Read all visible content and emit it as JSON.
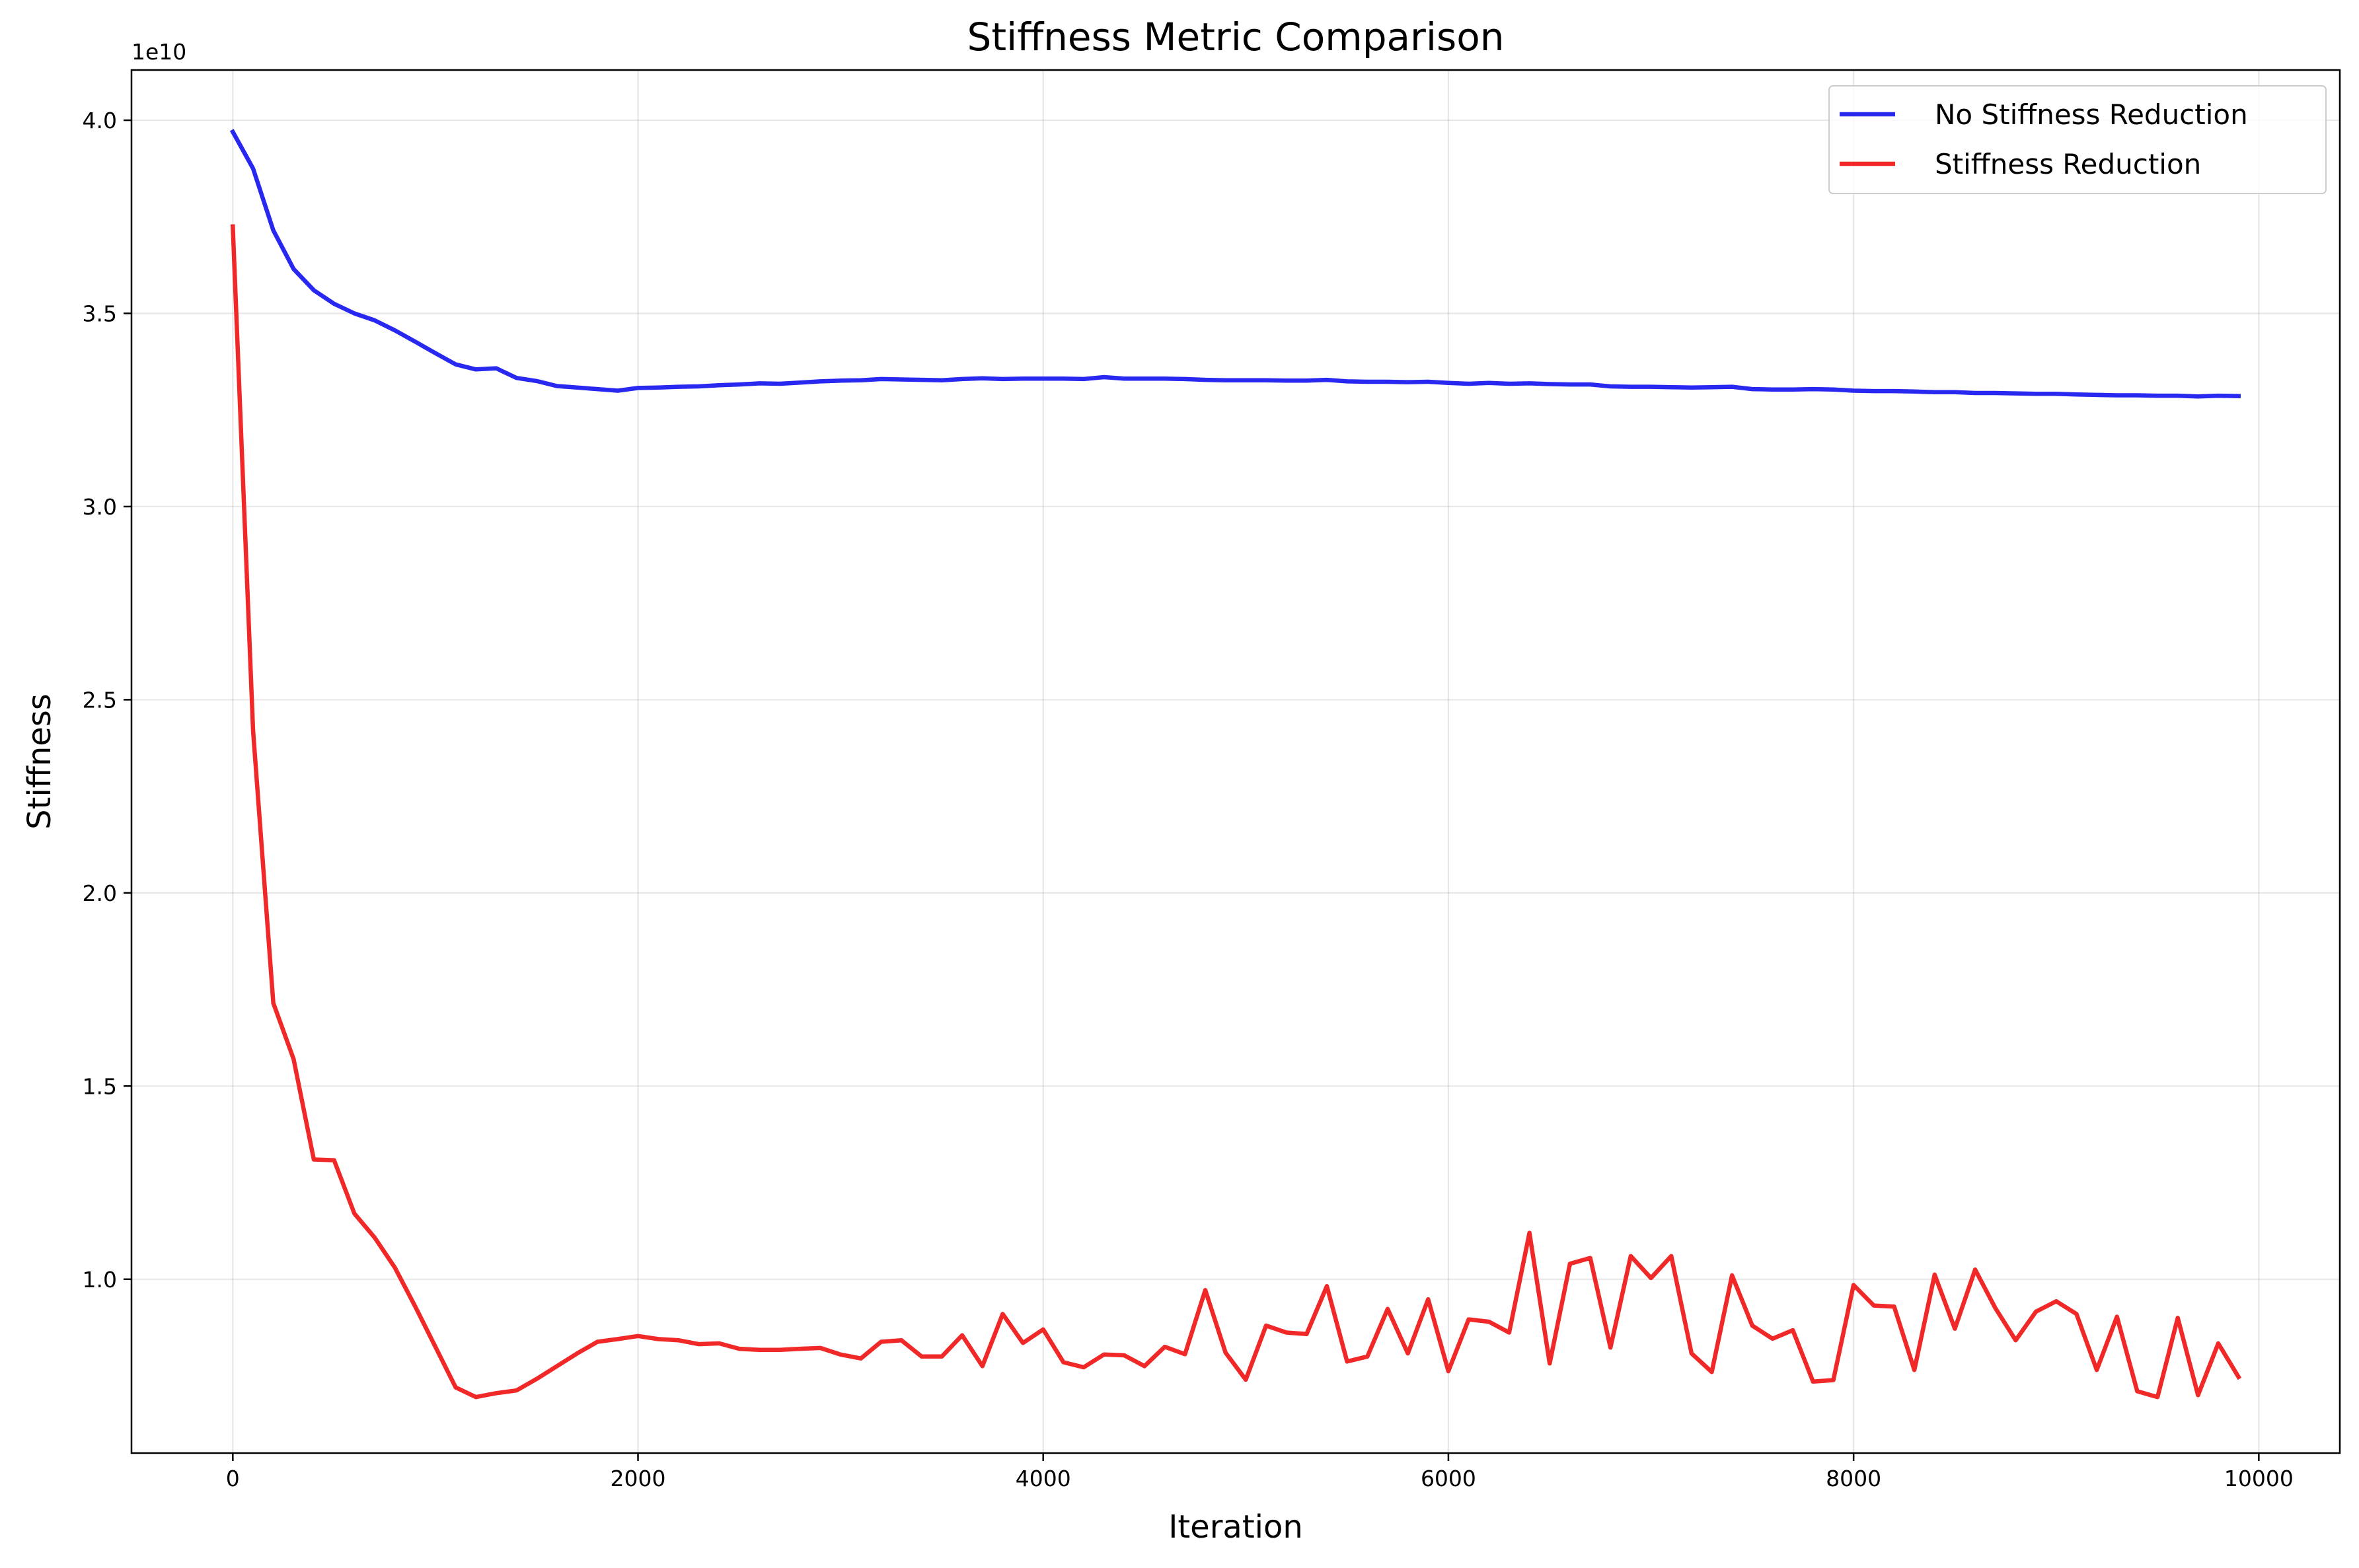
{
  "chart_data": {
    "type": "line",
    "title": "Stiffness Metric Comparison",
    "xlabel": "Iteration",
    "ylabel": "Stiffness",
    "y_offset_label": "1e10",
    "xlim": [
      -500,
      10400
    ],
    "ylim": [
      5500000000,
      41300000000
    ],
    "x_ticks": [
      0,
      2000,
      4000,
      6000,
      8000,
      10000
    ],
    "x_tick_labels": [
      "0",
      "2000",
      "4000",
      "6000",
      "8000",
      "10000"
    ],
    "y_ticks": [
      10000000000,
      15000000000,
      20000000000,
      25000000000,
      30000000000,
      35000000000,
      40000000000
    ],
    "y_tick_labels": [
      "1.0",
      "1.5",
      "2.0",
      "2.5",
      "3.0",
      "3.5",
      "4.0"
    ],
    "grid": true,
    "legend_position": "top-right",
    "x": [
      0,
      100,
      200,
      300,
      400,
      500,
      600,
      700,
      800,
      900,
      1000,
      1100,
      1200,
      1300,
      1400,
      1500,
      1600,
      1700,
      1800,
      1900,
      2000,
      2100,
      2200,
      2300,
      2400,
      2500,
      2600,
      2700,
      2800,
      2900,
      3000,
      3100,
      3200,
      3300,
      3400,
      3500,
      3600,
      3700,
      3800,
      3900,
      4000,
      4100,
      4200,
      4300,
      4400,
      4500,
      4600,
      4700,
      4800,
      4900,
      5000,
      5100,
      5200,
      5300,
      5400,
      5500,
      5600,
      5700,
      5800,
      5900,
      6000,
      6100,
      6200,
      6300,
      6400,
      6500,
      6600,
      6700,
      6800,
      6900,
      7000,
      7100,
      7200,
      7300,
      7400,
      7500,
      7600,
      7700,
      7800,
      7900,
      8000,
      8100,
      8200,
      8300,
      8400,
      8500,
      8600,
      8700,
      8800,
      8900,
      9000,
      9100,
      9200,
      9300,
      9400,
      9500,
      9600,
      9700,
      9800,
      9900
    ],
    "series": [
      {
        "name": "No Stiffness Reduction",
        "color": "#2828f0",
        "values": [
          39700000000,
          38750000000,
          37150000000,
          36150000000,
          35600000000,
          35250000000,
          35000000000,
          34820000000,
          34560000000,
          34270000000,
          33970000000,
          33680000000,
          33550000000,
          33580000000,
          33330000000,
          33250000000,
          33120000000,
          33080000000,
          33040000000,
          33000000000,
          33070000000,
          33080000000,
          33100000000,
          33110000000,
          33140000000,
          33160000000,
          33190000000,
          33180000000,
          33210000000,
          33240000000,
          33260000000,
          33270000000,
          33300000000,
          33290000000,
          33280000000,
          33270000000,
          33300000000,
          33320000000,
          33300000000,
          33310000000,
          33310000000,
          33310000000,
          33300000000,
          33350000000,
          33310000000,
          33310000000,
          33310000000,
          33300000000,
          33280000000,
          33270000000,
          33270000000,
          33270000000,
          33260000000,
          33260000000,
          33280000000,
          33240000000,
          33230000000,
          33230000000,
          33220000000,
          33230000000,
          33200000000,
          33180000000,
          33200000000,
          33180000000,
          33190000000,
          33170000000,
          33160000000,
          33160000000,
          33110000000,
          33100000000,
          33100000000,
          33090000000,
          33080000000,
          33090000000,
          33100000000,
          33040000000,
          33030000000,
          33030000000,
          33040000000,
          33030000000,
          33000000000,
          32990000000,
          32990000000,
          32980000000,
          32960000000,
          32960000000,
          32940000000,
          32940000000,
          32930000000,
          32920000000,
          32920000000,
          32900000000,
          32890000000,
          32880000000,
          32880000000,
          32870000000,
          32870000000,
          32850000000,
          32870000000,
          32860000000
        ]
      },
      {
        "name": "Stiffness Reduction",
        "color": "#f02828",
        "values": [
          37250000000,
          24200000000,
          17150000000,
          15700000000,
          13100000000,
          13080000000,
          11700000000,
          11080000000,
          10300000000,
          9300000000,
          8250000000,
          7200000000,
          6950000000,
          7050000000,
          7120000000,
          7420000000,
          7750000000,
          8080000000,
          8380000000,
          8450000000,
          8530000000,
          8450000000,
          8420000000,
          8320000000,
          8340000000,
          8200000000,
          8170000000,
          8170000000,
          8200000000,
          8220000000,
          8050000000,
          7950000000,
          8380000000,
          8420000000,
          8000000000,
          8000000000,
          8550000000,
          7750000000,
          9100000000,
          8350000000,
          8700000000,
          7850000000,
          7720000000,
          8050000000,
          8030000000,
          7750000000,
          8250000000,
          8060000000,
          9720000000,
          8100000000,
          7400000000,
          8800000000,
          8620000000,
          8580000000,
          9820000000,
          7870000000,
          8000000000,
          9230000000,
          8080000000,
          9480000000,
          7620000000,
          8960000000,
          8900000000,
          8620000000,
          11200000000,
          7820000000,
          10400000000,
          10550000000,
          8230000000,
          10600000000,
          10030000000,
          10600000000,
          8080000000,
          7600000000,
          10100000000,
          8800000000,
          8460000000,
          8680000000,
          7350000000,
          7390000000,
          9850000000,
          9320000000,
          9290000000,
          7650000000,
          10120000000,
          8720000000,
          10250000000,
          9250000000,
          8420000000,
          9160000000,
          9430000000,
          9100000000,
          7650000000,
          9030000000,
          7100000000,
          6950000000,
          9000000000,
          7000000000,
          8340000000,
          7470000000
        ]
      }
    ]
  }
}
